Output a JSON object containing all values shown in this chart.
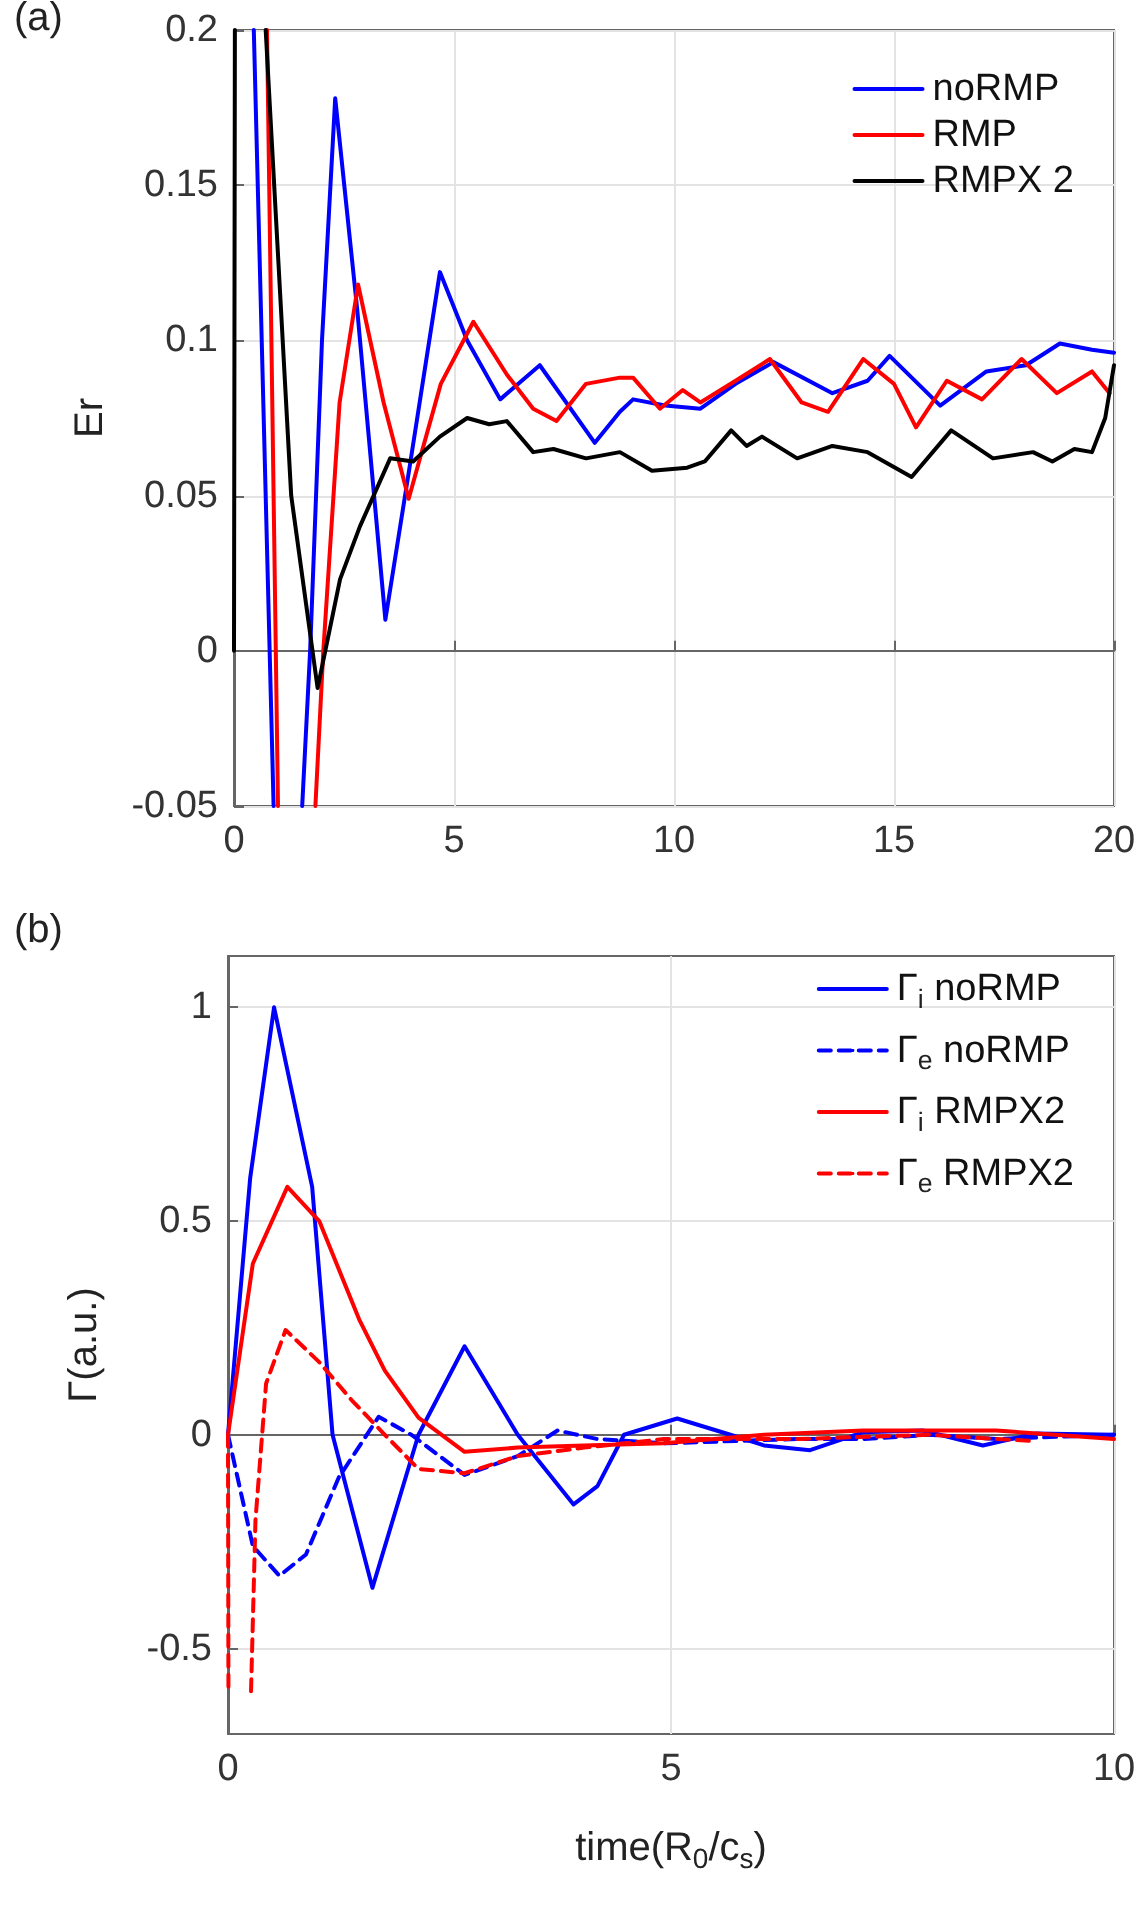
{
  "chart_data": [
    {
      "type": "line",
      "title": "(a)",
      "ylabel": "Er",
      "xlim": [
        0,
        20
      ],
      "ylim": [
        -0.05,
        0.2
      ],
      "xticks": [
        0,
        5,
        10,
        15,
        20
      ],
      "yticks": [
        -0.05,
        0,
        0.05,
        0.1,
        0.15,
        0.2
      ],
      "grid": true,
      "legend": "top right",
      "marker": "none",
      "line_style": "solid",
      "series": [
        {
          "name": "noRMP",
          "color": "#0000ff",
          "x": [
            0.45,
            0.9,
            1.2,
            1.55,
            1.73,
            2.0,
            2.3,
            2.8,
            3.44,
            4.0,
            4.68,
            5.3,
            6.05,
            6.95,
            8.2,
            8.77,
            9.07,
            9.8,
            10.6,
            11.4,
            12.26,
            13.6,
            14.4,
            14.9,
            16.05,
            17.1,
            18.0,
            18.77,
            19.5,
            20
          ],
          "values": [
            0.2,
            -0.05,
            null,
            -0.05,
            0,
            0.1,
            0.178,
            0.11,
            0.01,
            0.06,
            0.122,
            0.1,
            0.081,
            0.092,
            0.067,
            0.077,
            0.081,
            0.079,
            0.078,
            0.086,
            0.093,
            0.083,
            0.087,
            0.095,
            0.079,
            0.09,
            0.092,
            0.099,
            0.097,
            0.096
          ]
        },
        {
          "name": "RMP",
          "color": "#ff0000",
          "x": [
            0.75,
            1.0,
            1.4,
            1.85,
            2.03,
            2.4,
            2.82,
            3.4,
            3.97,
            4.7,
            5.44,
            6.2,
            6.8,
            7.33,
            8.0,
            8.77,
            9.07,
            9.68,
            10.2,
            10.6,
            11.4,
            12.18,
            12.9,
            13.5,
            14.3,
            15.0,
            15.5,
            16.2,
            17.0,
            17.9,
            18.7,
            19.5,
            19.9
          ],
          "values": [
            0.2,
            -0.05,
            null,
            -0.05,
            0,
            0.08,
            0.118,
            0.08,
            0.049,
            0.086,
            0.106,
            0.089,
            0.078,
            0.074,
            0.086,
            0.088,
            0.088,
            0.078,
            0.084,
            0.08,
            0.087,
            0.094,
            0.08,
            0.077,
            0.094,
            0.086,
            0.072,
            0.087,
            0.081,
            0.094,
            0.083,
            0.09,
            0.083
          ]
        },
        {
          "name": "RMPX 2",
          "color": "#000000",
          "x": [
            0,
            0.02,
            0.5,
            0.72,
            1.3,
            1.9,
            2.41,
            2.86,
            3.55,
            4.07,
            4.68,
            5.3,
            5.8,
            6.2,
            6.8,
            7.26,
            8.0,
            8.77,
            9.5,
            10.3,
            10.7,
            11.3,
            11.65,
            12.0,
            12.8,
            13.6,
            14.4,
            15.4,
            16.3,
            17.25,
            18.16,
            18.6,
            19.1,
            19.5,
            19.8,
            20
          ],
          "values": [
            0,
            0.2,
            null,
            0.2,
            0.05,
            -0.012,
            0.023,
            0.04,
            0.062,
            0.061,
            0.069,
            0.075,
            0.073,
            0.074,
            0.064,
            0.065,
            0.062,
            0.064,
            0.058,
            0.059,
            0.061,
            0.071,
            0.066,
            0.069,
            0.062,
            0.066,
            0.064,
            0.056,
            0.071,
            0.062,
            0.064,
            0.061,
            0.065,
            0.064,
            0.075,
            0.092
          ]
        }
      ]
    },
    {
      "type": "line",
      "title": "(b)",
      "xlabel": "time(R$_{0}$/c$_{s}$)",
      "ylabel": "Γ(a.u.)",
      "xlim": [
        0,
        10
      ],
      "ylim": [
        -0.7,
        1.12
      ],
      "xticks": [
        0,
        5,
        10
      ],
      "yticks": [
        -0.5,
        0,
        0.5,
        1
      ],
      "grid": true,
      "legend": "top right",
      "marker": "none",
      "series": [
        {
          "name": "Γ$_{i}$ noRMP",
          "color": "#0000ff",
          "line_style": "solid",
          "x": [
            0,
            0.25,
            0.52,
            0.95,
            1.18,
            1.63,
            2.15,
            2.67,
            3.27,
            3.9,
            4.17,
            4.47,
            5.07,
            5.67,
            6.05,
            6.57,
            7.17,
            7.84,
            8.52,
            9.12,
            10
          ],
          "values": [
            0,
            0.6,
            1.0,
            0.58,
            0,
            -0.358,
            0,
            0.207,
            0,
            -0.163,
            -0.12,
            0,
            0.038,
            0,
            -0.025,
            -0.036,
            0.006,
            0.01,
            -0.025,
            0.003,
            0
          ]
        },
        {
          "name": "Γ$_{e}$ noRMP",
          "color": "#0000ff",
          "line_style": "dashed",
          "x": [
            0,
            0.28,
            0.58,
            0.88,
            1.25,
            1.7,
            2.07,
            2.67,
            3.27,
            3.72,
            4.17,
            4.92,
            6.42,
            7.17,
            7.92,
            8.67,
            10
          ],
          "values": [
            0,
            -0.26,
            -0.33,
            -0.28,
            -0.1,
            0.042,
            0,
            -0.094,
            -0.05,
            0.01,
            -0.01,
            -0.02,
            -0.01,
            -0.01,
            0,
            -0.01,
            0
          ]
        },
        {
          "name": "Γ$_{i}$ RMPX2",
          "color": "#ff0000",
          "line_style": "solid",
          "x": [
            0,
            0.28,
            0.67,
            1.03,
            1.48,
            1.77,
            2.15,
            2.67,
            3.27,
            4.02,
            4.92,
            6.05,
            7.17,
            8.67,
            10
          ],
          "values": [
            0,
            0.4,
            0.58,
            0.5,
            0.27,
            0.15,
            0.04,
            -0.04,
            -0.03,
            -0.025,
            -0.02,
            0,
            0.01,
            0.01,
            -0.01
          ]
        },
        {
          "name": "Γ$_{e}$ RMPX2",
          "color": "#ff0000",
          "line_style": "dashed",
          "x": [
            0,
            0.005,
            0.1,
            0.26,
            0.31,
            0.43,
            0.65,
            1.03,
            1.4,
            1.77,
            2.15,
            2.67,
            3.27,
            4.02,
            4.92,
            6.42,
            7.92,
            9.1
          ],
          "values": [
            0,
            -0.6,
            null,
            -0.6,
            -0.2,
            0.12,
            0.245,
            0.17,
            0.08,
            0,
            -0.08,
            -0.09,
            -0.05,
            -0.03,
            -0.01,
            -0.01,
            0,
            -0.015
          ]
        }
      ]
    }
  ]
}
